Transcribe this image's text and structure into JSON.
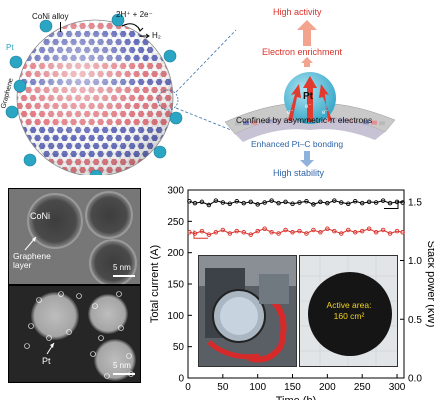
{
  "schematic": {
    "alloy_label": "CoNi alloy",
    "pt_label": "Pt",
    "graphene_label": "Graphene",
    "reaction_label": "2H⁺ + 2e⁻",
    "h2_label": "H₂"
  },
  "mechanism": {
    "high_activity": "High activity",
    "electron_enrichment": "Electron enrichment",
    "pt_label": "Pt",
    "e_label": "e⁻",
    "confined_label": "Confined by asymmetric π electrons",
    "enhanced_label": "Enhanced Pt–C bonding",
    "high_stability": "High stability",
    "colors": {
      "red": "#d9322b",
      "blue": "#2d63a8",
      "pt": "#45b7d3"
    }
  },
  "tem_top": {
    "coni_label": "CoNi",
    "graphene_label": "Graphene\nlayer",
    "scale_label": "5 nm"
  },
  "tem_bottom": {
    "pt_label": "Pt",
    "scale_label": "5 nm"
  },
  "photos": {
    "active_area_label": "Active area:\n160 cm²"
  },
  "chart_data": {
    "type": "scatter",
    "xlabel": "Time (h)",
    "ylabel_left": "Total current (A)",
    "ylabel_right": "Stack power (kW)",
    "xlim": [
      0,
      310
    ],
    "ylim_left": [
      0,
      300
    ],
    "ylim_right": [
      0,
      1.6
    ],
    "x_ticks": [
      0,
      50,
      100,
      150,
      200,
      250,
      300
    ],
    "y_left_ticks": [
      0,
      50,
      100,
      150,
      200,
      250,
      300
    ],
    "y_right_ticks": [
      0.0,
      0.5,
      1.0,
      1.5
    ],
    "series": [
      {
        "color": "#000000",
        "axis": "left",
        "x": [
          2,
          10,
          20,
          30,
          40,
          50,
          60,
          70,
          80,
          90,
          100,
          110,
          120,
          130,
          140,
          150,
          160,
          170,
          180,
          190,
          200,
          210,
          220,
          230,
          240,
          250,
          260,
          270,
          280,
          290,
          300,
          308
        ],
        "y": [
          282,
          279,
          281,
          276,
          283,
          280,
          278,
          282,
          279,
          281,
          277,
          280,
          283,
          279,
          281,
          278,
          280,
          282,
          277,
          281,
          279,
          283,
          280,
          278,
          282,
          279,
          281,
          280,
          283,
          279,
          281,
          280
        ]
      },
      {
        "color": "#d9322b",
        "axis": "right",
        "x": [
          2,
          10,
          20,
          30,
          40,
          50,
          60,
          70,
          80,
          90,
          100,
          110,
          120,
          130,
          140,
          150,
          160,
          170,
          180,
          190,
          200,
          210,
          220,
          230,
          240,
          250,
          260,
          270,
          280,
          290,
          300,
          308
        ],
        "y": [
          1.24,
          1.23,
          1.25,
          1.22,
          1.24,
          1.26,
          1.23,
          1.25,
          1.24,
          1.22,
          1.25,
          1.27,
          1.24,
          1.23,
          1.26,
          1.24,
          1.25,
          1.23,
          1.26,
          1.24,
          1.27,
          1.25,
          1.23,
          1.26,
          1.24,
          1.25,
          1.27,
          1.24,
          1.26,
          1.23,
          1.25,
          1.24
        ]
      }
    ]
  }
}
